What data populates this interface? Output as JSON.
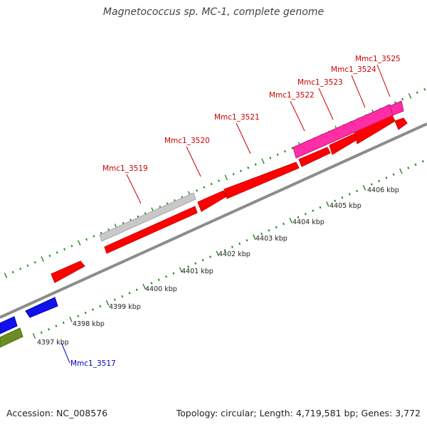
{
  "title": "Magnetococcus sp. MC-1, complete genome",
  "footer": {
    "accession": "Accession: NC_008576",
    "stats": "Topology: circular; Length: 4,719,581 bp; Genes: 3,772"
  },
  "colors": {
    "backbone": "#8c8c8c",
    "ticks": "#1f8a1f",
    "label_red": "#cc0000",
    "label_blue": "#0000cc",
    "cds": "#ff0000",
    "cds_edge": "#c80000",
    "pseudo": "#c8c8c8",
    "rna": "#ff2da6",
    "minus_cds": "#1111ee",
    "other": "#6b8e23"
  },
  "scale": {
    "unit": "kbp",
    "labels": [
      "4397 kbp",
      "4398 kbp",
      "4399 kbp",
      "4400 kbp",
      "4401 kbp",
      "4402 kbp",
      "4403 kbp",
      "4404 kbp",
      "4405 kbp",
      "4406 kbp"
    ]
  },
  "gene_labels": [
    {
      "name": "Mmc1_3517",
      "color": "blue"
    },
    {
      "name": "Mmc1_3519",
      "color": "red"
    },
    {
      "name": "Mmc1_3520",
      "color": "red"
    },
    {
      "name": "Mmc1_3521",
      "color": "red"
    },
    {
      "name": "Mmc1_3522",
      "color": "red"
    },
    {
      "name": "Mmc1_3523",
      "color": "red"
    },
    {
      "name": "Mmc1_3524",
      "color": "red"
    },
    {
      "name": "Mmc1_3525",
      "color": "red"
    }
  ]
}
